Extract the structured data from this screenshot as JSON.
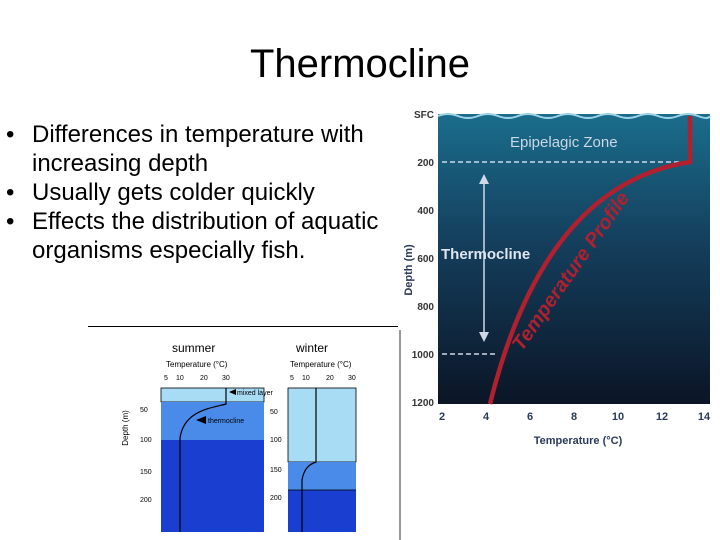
{
  "slide": {
    "title": "Thermocline",
    "bullet_glyph": "•",
    "bullets": [
      "Differences in temperature with increasing depth",
      "Usually gets colder quickly",
      "Effects the distribution of aquatic organisms especially fish."
    ]
  },
  "ocean_figure": {
    "depth_axis_label": "Depth (m)",
    "depth_ticks": [
      "SFC",
      "200",
      "400",
      "600",
      "800",
      "1000",
      "1200"
    ],
    "temp_ticks": [
      "2",
      "4",
      "6",
      "8",
      "10",
      "12",
      "14"
    ],
    "temp_axis_label": "Temperature (°C)",
    "zone_label": "Epipelagic Zone",
    "thermocline_label": "Thermocline",
    "profile_label": "Temperature Profile",
    "colors": {
      "sky": "#ffffff",
      "surface": "#1a6d8c",
      "deep": "#0b1526",
      "profile": "#b0202e"
    }
  },
  "seasonal_figure": {
    "summer_label": "summer",
    "winter_label": "winter",
    "temp_axis_label": "Temperature (°C)",
    "temp_ticks": [
      "5",
      "10",
      "20",
      "30"
    ],
    "depth_axis_label": "Depth (m)",
    "summer_depth_ticks": [
      "50",
      "100",
      "150",
      "200"
    ],
    "winter_depth_ticks": [
      "50",
      "100",
      "150",
      "200"
    ],
    "mixed_layer_label": "mixed layer",
    "thermocline_label": "thermocline",
    "colors": {
      "light": "#a8dcf5",
      "mid": "#4a8ae8",
      "dark": "#1a3fd0"
    }
  }
}
